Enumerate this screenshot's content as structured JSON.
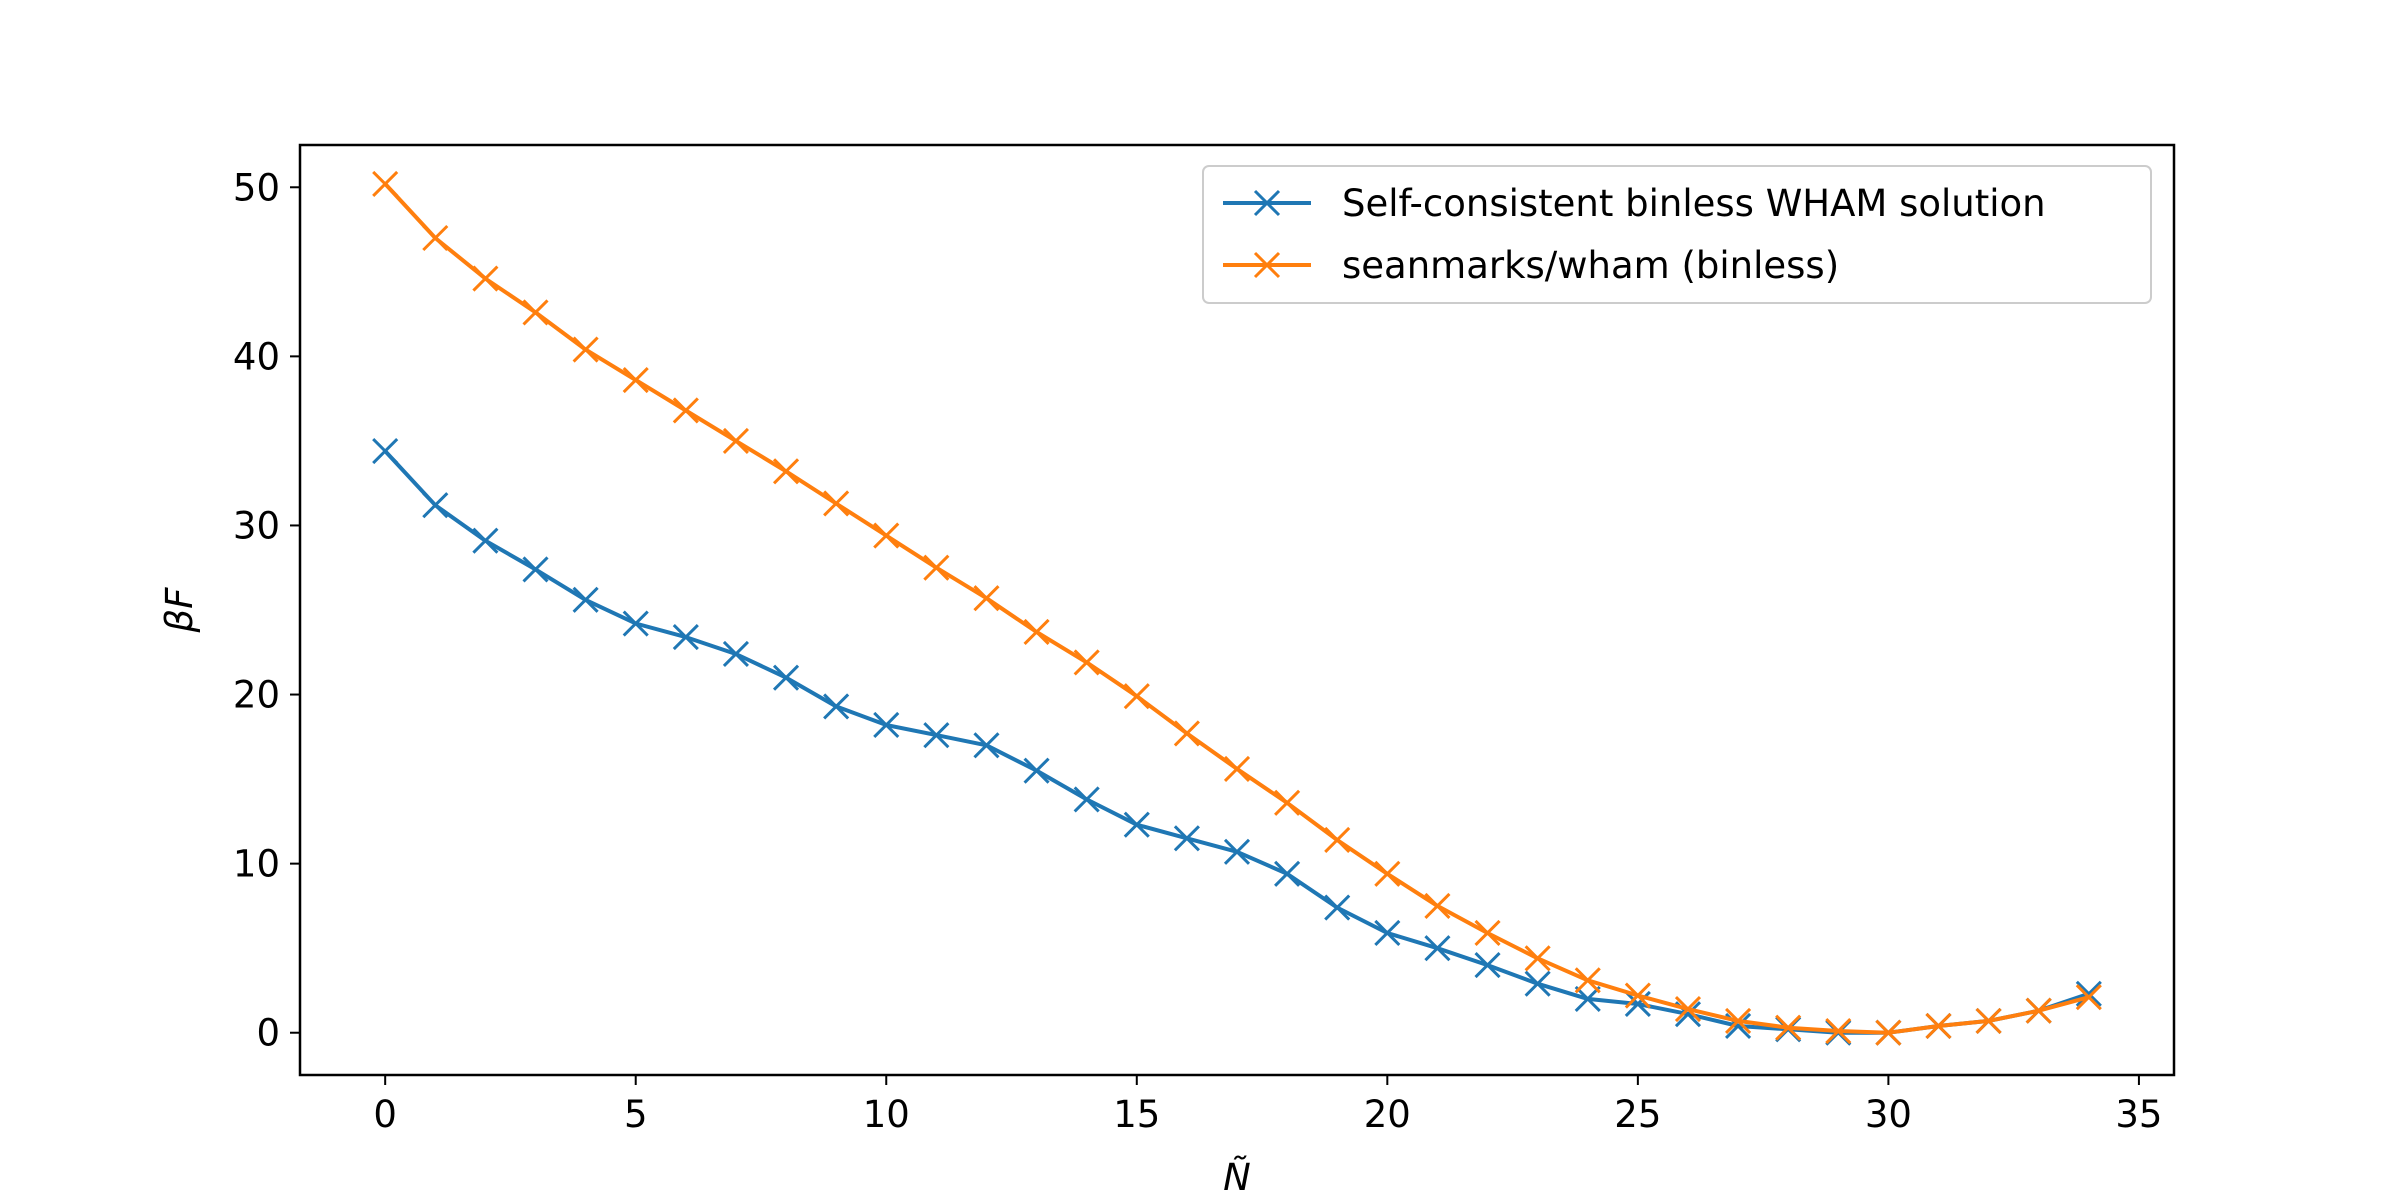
{
  "chart_data": {
    "type": "line",
    "xlabel": "Ñ",
    "ylabel": "βF",
    "xlim": [
      -1.7,
      35.7
    ],
    "ylim": [
      -2.5,
      52.5
    ],
    "xticks": [
      0,
      5,
      10,
      15,
      20,
      25,
      30,
      35
    ],
    "yticks": [
      0,
      10,
      20,
      30,
      40,
      50
    ],
    "grid": false,
    "legend_position": "top-right",
    "marker": "x",
    "series": [
      {
        "name": "Self-consistent binless WHAM solution",
        "color": "#1f77b4",
        "x": [
          0,
          1,
          2,
          3,
          4,
          5,
          6,
          7,
          8,
          9,
          10,
          11,
          12,
          13,
          14,
          15,
          16,
          17,
          18,
          19,
          20,
          21,
          22,
          23,
          24,
          25,
          26,
          27,
          28,
          29,
          30,
          31,
          32,
          33,
          34
        ],
        "values": [
          34.4,
          31.2,
          29.1,
          27.4,
          25.6,
          24.2,
          23.4,
          22.4,
          21.0,
          19.3,
          18.2,
          17.6,
          17.0,
          15.5,
          13.8,
          12.3,
          11.5,
          10.7,
          9.4,
          7.4,
          5.9,
          5.0,
          4.0,
          2.9,
          2.0,
          1.7,
          1.1,
          0.4,
          0.2,
          0.0,
          0.0,
          0.4,
          0.7,
          1.3,
          2.3
        ]
      },
      {
        "name": "seanmarks/wham (binless)",
        "color": "#ff7f0e",
        "x": [
          0,
          1,
          2,
          3,
          4,
          5,
          6,
          7,
          8,
          9,
          10,
          11,
          12,
          13,
          14,
          15,
          16,
          17,
          18,
          19,
          20,
          21,
          22,
          23,
          24,
          25,
          26,
          27,
          28,
          29,
          30,
          31,
          32,
          33,
          34
        ],
        "values": [
          50.2,
          47.0,
          44.6,
          42.6,
          40.4,
          38.6,
          36.8,
          35.0,
          33.2,
          31.3,
          29.4,
          27.5,
          25.7,
          23.7,
          21.9,
          19.9,
          17.7,
          15.6,
          13.6,
          11.4,
          9.4,
          7.5,
          5.9,
          4.4,
          3.1,
          2.2,
          1.4,
          0.7,
          0.3,
          0.1,
          0.0,
          0.4,
          0.7,
          1.3,
          2.1
        ]
      }
    ]
  }
}
